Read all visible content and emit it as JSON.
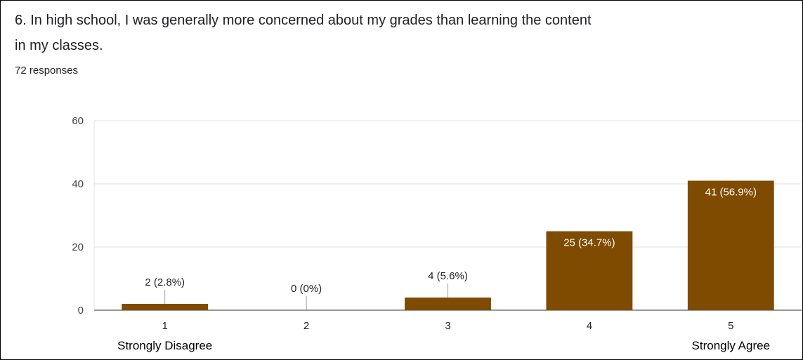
{
  "question": {
    "line1": "6. In high school, I was generally more concerned about my grades than learning the content",
    "line2": "in my classes."
  },
  "responses_label": "72 responses",
  "chart_data": {
    "type": "bar",
    "categories": [
      "1",
      "2",
      "3",
      "4",
      "5"
    ],
    "values": [
      2,
      0,
      4,
      25,
      41
    ],
    "data_labels": [
      "2 (2.8%)",
      "0 (0%)",
      "4 (5.6%)",
      "25 (34.7%)",
      "41 (56.9%)"
    ],
    "category_sublabels": [
      "Strongly Disagree",
      "",
      "",
      "",
      "Strongly Agree"
    ],
    "yticks": [
      0,
      20,
      40,
      60
    ],
    "ylim": [
      0,
      60
    ],
    "grid": true,
    "colors": {
      "bar": "#7f4b00",
      "grid": "#e0e0e0",
      "axis": "#333333"
    }
  }
}
